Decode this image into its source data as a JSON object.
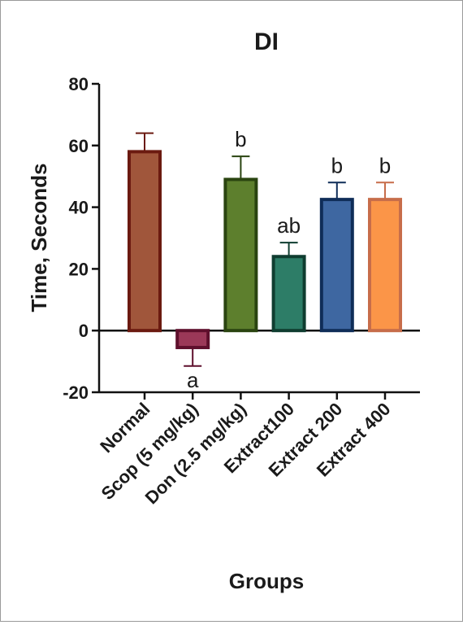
{
  "chart_data": {
    "type": "bar",
    "title": "DI",
    "xlabel": "Groups",
    "ylabel": "Time, Seconds",
    "ylim": [
      -20,
      80
    ],
    "yticks": [
      -20,
      0,
      20,
      40,
      60,
      80
    ],
    "ytick_labels": [
      "-20",
      "0",
      "20",
      "40",
      "60",
      "80"
    ],
    "categories": [
      "Normal",
      "Scop (5 mg/kg)",
      "Don (2.5 mg/kg)",
      "Extract100",
      "Extract 200",
      "Extract 400"
    ],
    "values": [
      58,
      -5.5,
      49,
      24,
      42.5,
      42.5
    ],
    "errors": [
      6,
      6,
      7.5,
      4.5,
      5.5,
      5.5
    ],
    "annotations": [
      "",
      "a",
      "b",
      "ab",
      "b",
      "b"
    ],
    "colors": {
      "fill": [
        "#a0563b",
        "#9b3858",
        "#5d7f2d",
        "#2d7d67",
        "#3e67a1",
        "#fb9548"
      ],
      "edge": [
        "#6b1a10",
        "#5e0f2c",
        "#2a4410",
        "#0f3d30",
        "#0f2d58",
        "#c76d4a"
      ]
    },
    "grid": false,
    "legend": "none"
  }
}
